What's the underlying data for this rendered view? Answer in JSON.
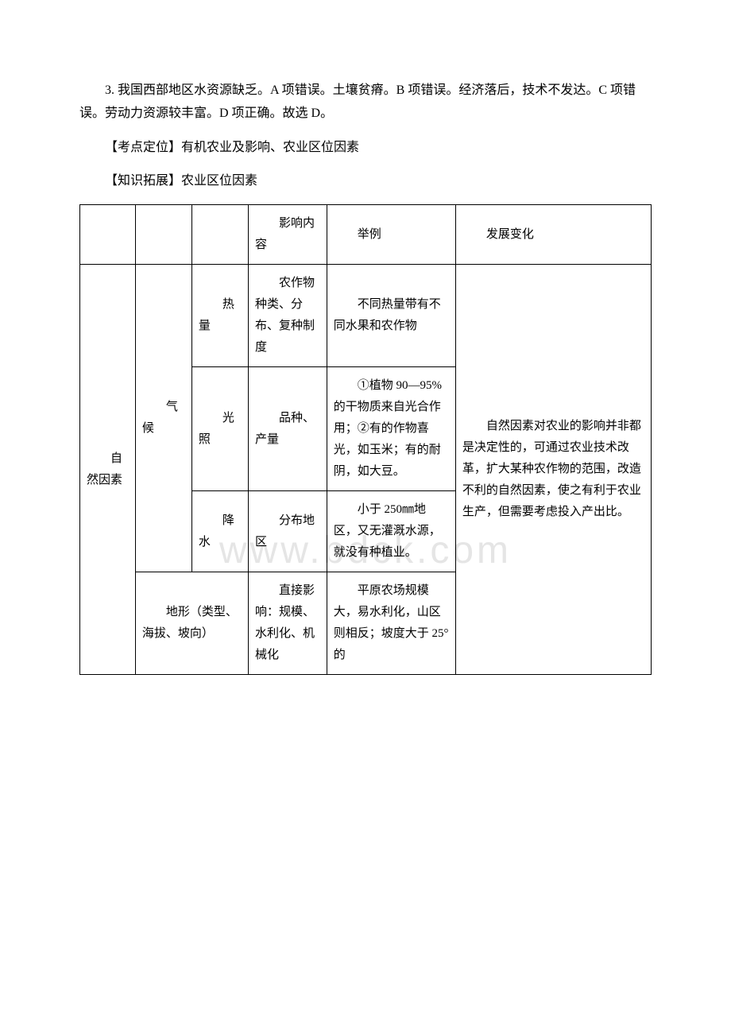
{
  "paragraphs": {
    "p1": "3. 我国西部地区水资源缺乏。A 项错误。土壤贫瘠。B 项错误。经济落后，技术不发达。C 项错误。劳动力资源较丰富。D 项正确。故选 D。",
    "p2": "【考点定位】有机农业及影响、农业区位因素",
    "p3": "【知识拓展】农业区位因素"
  },
  "watermark": "www.bdck.com",
  "table": {
    "header": {
      "col3": "影响内容",
      "col4": "举例",
      "col5": "发展变化"
    },
    "rows": {
      "natural_factor": "自然因素",
      "climate": "气候",
      "heat": {
        "label": "热量",
        "content": "农作物种类、分布、复种制度",
        "example": "不同热量带有不同水果和农作物"
      },
      "light": {
        "label": "光照",
        "content": "品种、产量",
        "example": "①植物 90—95%的干物质来自光合作用；②有的作物喜光，如玉米；有的耐阴，如大豆。"
      },
      "precipitation": {
        "label": "降水",
        "content": "分布地区",
        "example": "小于 250㎜地区，又无灌溉水源，就没有种植业。"
      },
      "terrain": {
        "label": "地形（类型、海拔、坡向）",
        "content": "直接影响：规模、水利化、机械化",
        "example": "平原农场规模大，易水利化，山区则相反；坡度大于 25°的"
      },
      "development": "自然因素对农业的影响并非都是决定性的，可通过农业技术改革，扩大某种农作物的范围，改造不利的自然因素，使之有利于农业生产，但需要考虑投入产出比。"
    }
  }
}
